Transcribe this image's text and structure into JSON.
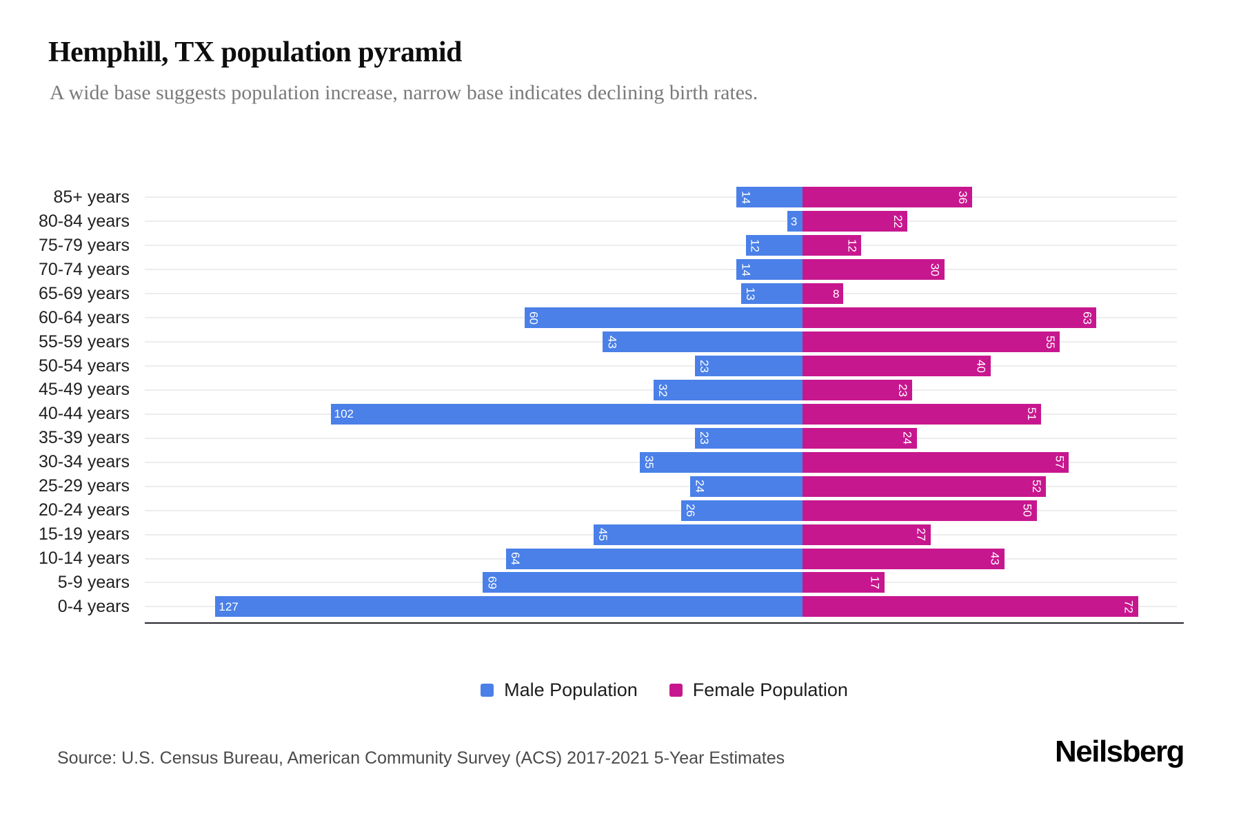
{
  "title": "Hemphill, TX population pyramid",
  "subtitle": "A wide base suggests population increase, narrow base indicates declining birth rates.",
  "source": "Source: U.S. Census Bureau, American Community Survey (ACS) 2017-2021 5-Year Estimates",
  "brand": "Neilsberg",
  "legend": [
    {
      "label": "Male Population",
      "color": "#4a80e8"
    },
    {
      "label": "Female Population",
      "color": "#c7178e"
    }
  ],
  "colors": {
    "male": "#4a80e8",
    "female": "#c7178e",
    "gridline": "#ededed",
    "baseline": "#23252a"
  },
  "chart_data": {
    "type": "bar",
    "subtype": "population-pyramid",
    "title": "Hemphill, TX population pyramid",
    "xlabel": "",
    "ylabel": "",
    "legend_position": "bottom-center",
    "grid": "horizontal-light",
    "bar_value_labels": "inside-outer-end, white",
    "categories": [
      "85+ years",
      "80-84 years",
      "75-79 years",
      "70-74 years",
      "65-69 years",
      "60-64 years",
      "55-59 years",
      "50-54 years",
      "45-49 years",
      "40-44 years",
      "35-39 years",
      "30-34 years",
      "25-29 years",
      "20-24 years",
      "15-19 years",
      "10-14 years",
      "5-9 years",
      "0-4 years"
    ],
    "series": [
      {
        "name": "Male Population",
        "side": "left",
        "color": "#4a80e8",
        "values": [
          14,
          3,
          12,
          14,
          13,
          60,
          43,
          23,
          32,
          102,
          23,
          35,
          24,
          26,
          45,
          64,
          69,
          127
        ]
      },
      {
        "name": "Female Population",
        "side": "right",
        "color": "#c7178e",
        "values": [
          36,
          22,
          12,
          30,
          8,
          63,
          55,
          40,
          23,
          51,
          24,
          57,
          52,
          50,
          27,
          43,
          17,
          72
        ]
      }
    ]
  }
}
